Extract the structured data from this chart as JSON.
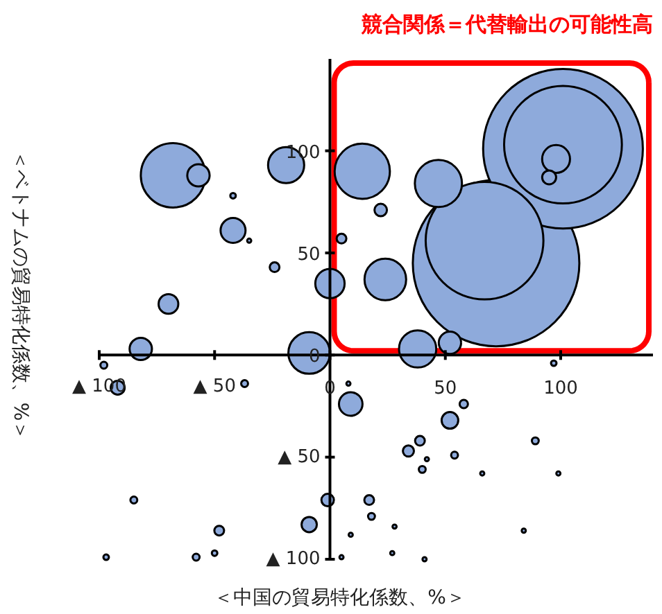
{
  "chart_data": {
    "type": "bubble",
    "title": "競合関係＝代替輸出の可能性高",
    "xlabel": "＜中国の貿易特化係数、%＞",
    "ylabel": "＜ベトナムの貿易特化係数、%＞",
    "color": "#8eaadb",
    "xlim": [
      -100,
      140
    ],
    "ylim": [
      -100,
      145
    ],
    "xticks": [
      {
        "value": -100,
        "label": "▲ 100"
      },
      {
        "value": -50,
        "label": "▲ 50"
      },
      0,
      50,
      100
    ],
    "yticks": [
      {
        "value": -100,
        "label": "▲ 100"
      },
      {
        "value": -50,
        "label": "▲ 50"
      },
      0,
      50,
      100
    ],
    "x": [
      72,
      101,
      101,
      67,
      -68,
      14,
      47,
      24,
      -9,
      38,
      -19,
      0,
      -57,
      98,
      -42,
      9,
      52,
      -70,
      -82,
      -92,
      52,
      95,
      -9,
      22,
      5,
      -24,
      58,
      39,
      34,
      -1,
      -48,
      17,
      -37,
      -50,
      -98,
      89,
      54,
      40,
      18,
      -85,
      -58,
      97,
      8,
      42,
      66,
      99,
      9,
      28,
      84,
      5,
      27,
      41,
      -42,
      -35,
      -97
    ],
    "values": [
      45,
      101,
      103,
      56,
      88,
      90,
      84,
      37,
      1,
      3,
      93,
      35,
      88,
      96,
      61,
      -24,
      6,
      25,
      3,
      -16,
      -32,
      87,
      -83,
      71,
      57,
      43,
      -24,
      -42,
      -47,
      -71,
      -86,
      -71,
      -14,
      -97,
      -5,
      -42,
      -49,
      -56,
      -79,
      -71,
      -99,
      -4,
      -14,
      -51,
      -58,
      -58,
      -88,
      -84,
      -86,
      -99,
      -97,
      -100,
      78,
      56,
      -99
    ],
    "sizes": [
      1,
      0.92,
      0.5,
      0.5,
      0.15,
      0.11,
      0.08,
      0.0625,
      0.0625,
      0.05,
      0.047,
      0.031,
      0.018,
      0.028,
      0.0225,
      0.02,
      0.018,
      0.014,
      0.018,
      0.007,
      0.01,
      0.007,
      0.0084,
      0.0056,
      0.0034,
      0.0034,
      0.0025,
      0.0034,
      0.0044,
      0.0056,
      0.0034,
      0.0034,
      0.0017,
      0.0011,
      0.0017,
      0.0017,
      0.0017,
      0.0017,
      0.0017,
      0.0017,
      0.0017,
      0.0011,
      0.0006,
      0.0006,
      0.0006,
      0.0006,
      0.0006,
      0.0006,
      0.0006,
      0.0006,
      0.0006,
      0.0006,
      0.0011,
      0.0006,
      0.0011
    ]
  }
}
